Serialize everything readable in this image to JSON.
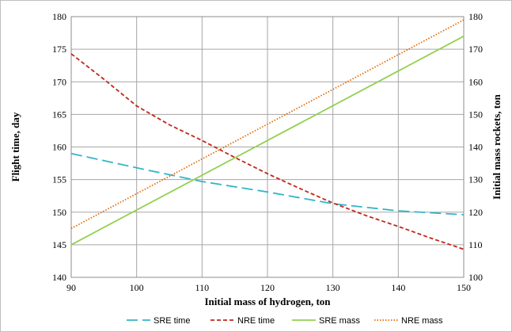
{
  "chart_data": {
    "type": "line",
    "title": "",
    "xlabel": "Initial mass of hydrogen, ton",
    "ylabel": "Flight time, day",
    "y2label": "Initial mass rockets, ton",
    "xlim": [
      90,
      150
    ],
    "ylim": [
      140,
      180
    ],
    "y2lim": [
      100,
      180
    ],
    "x_ticks": [
      90,
      100,
      110,
      120,
      130,
      140,
      150
    ],
    "y_ticks": [
      140,
      145,
      150,
      155,
      160,
      165,
      170,
      175,
      180
    ],
    "y2_ticks": [
      100,
      110,
      120,
      130,
      140,
      150,
      160,
      170,
      180
    ],
    "grid": true,
    "legend_position": "bottom",
    "series": [
      {
        "name": "SRE time",
        "axis": "left",
        "color": "#31b6c8",
        "style": "dashed",
        "x": [
          90,
          100,
          110,
          120,
          130,
          140,
          150
        ],
        "values": [
          159,
          156.8,
          154.7,
          153.1,
          151.3,
          150.2,
          149.6
        ]
      },
      {
        "name": "NRE time",
        "axis": "left",
        "color": "#c0281c",
        "style": "short-dash",
        "x": [
          90,
          95,
          100,
          105,
          110,
          115,
          120,
          125,
          130,
          135,
          140,
          145,
          150
        ],
        "values": [
          174.3,
          170.4,
          166.3,
          163.4,
          161.0,
          158.4,
          155.9,
          153.6,
          151.4,
          149.5,
          147.8,
          146.0,
          144.3
        ]
      },
      {
        "name": "SRE mass",
        "axis": "right",
        "color": "#92d050",
        "style": "solid",
        "x": [
          90,
          150
        ],
        "values": [
          110,
          174
        ]
      },
      {
        "name": "NRE mass",
        "axis": "right",
        "color": "#e46c0a",
        "style": "dotted",
        "x": [
          90,
          150
        ],
        "values": [
          115,
          179
        ]
      }
    ]
  }
}
